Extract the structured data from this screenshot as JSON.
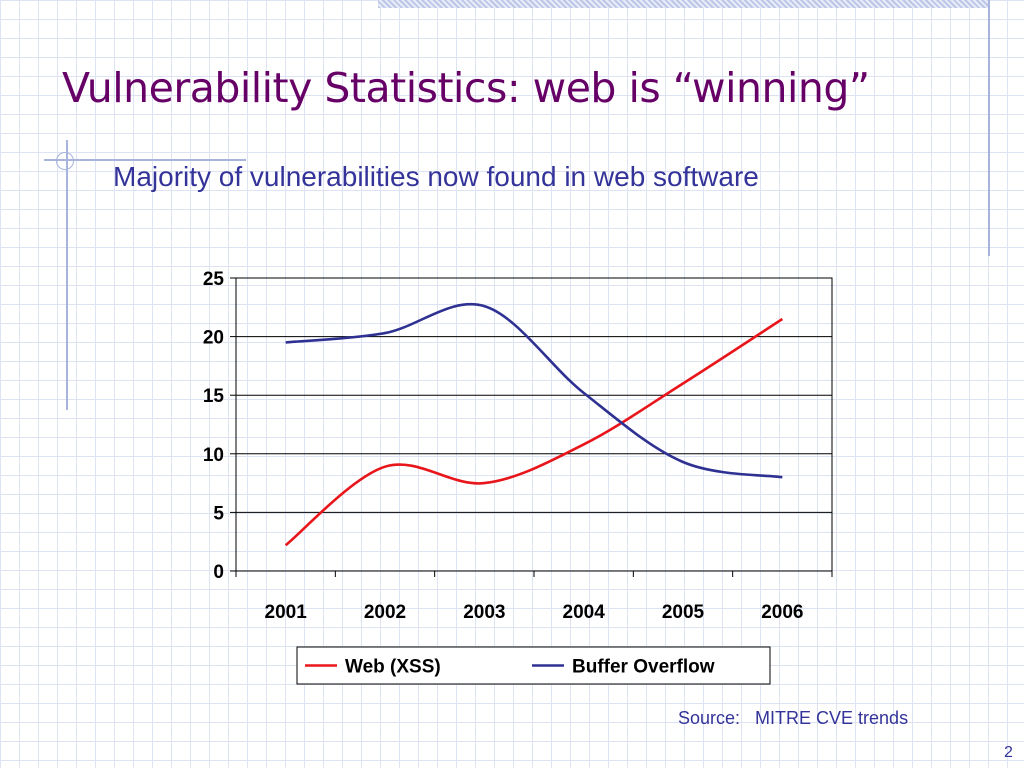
{
  "slide": {
    "title": "Vulnerability Statistics: web is “winning”",
    "subtitle": "Majority of vulnerabilities now found in web software",
    "source": "Source:   MITRE CVE trends",
    "page_number": "2"
  },
  "chart_data": {
    "type": "line",
    "categories": [
      "2001",
      "2002",
      "2003",
      "2004",
      "2005",
      "2006"
    ],
    "ylim": [
      0,
      25
    ],
    "yticks": [
      0,
      5,
      10,
      15,
      20,
      25
    ],
    "grid": true,
    "legend_position": "bottom",
    "series": [
      {
        "name": "Web (XSS)",
        "color": "#e8161b",
        "values": [
          2.2,
          8.9,
          7.5,
          10.8,
          16.0,
          21.5
        ]
      },
      {
        "name": "Buffer Overflow",
        "color": "#2e3192",
        "values": [
          19.5,
          20.3,
          22.6,
          15.2,
          9.3,
          8.0
        ]
      }
    ]
  }
}
